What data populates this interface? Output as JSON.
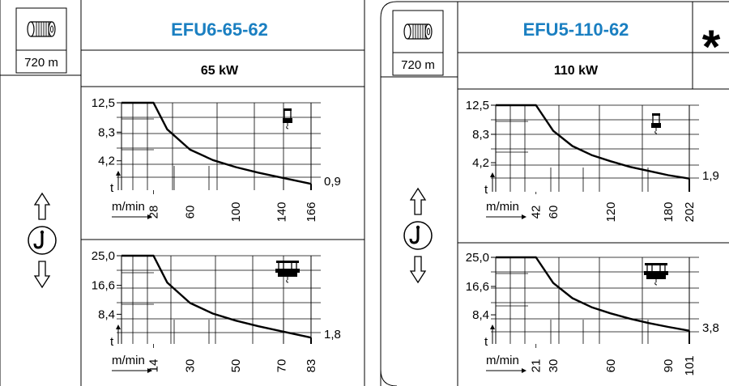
{
  "colors": {
    "title": "#1a7fc1",
    "ink": "#000000",
    "grid": "#000000"
  },
  "panels": [
    {
      "title": "EFU6-65-62",
      "power": "65 kW",
      "drum_label": "720 m",
      "star": "",
      "charts": [
        {
          "type": "line",
          "y_ticks": [
            "12,5",
            "8,3",
            "4,2"
          ],
          "y_tick_values": [
            12.5,
            8.3,
            4.2
          ],
          "y_unit": "t",
          "x_unit": "m/min",
          "x_ticks": [
            "28",
            "60",
            "100",
            "140",
            "166"
          ],
          "x_tick_values": [
            28,
            60,
            100,
            140,
            166
          ],
          "end_label": "0,9",
          "x": [
            0,
            28,
            40,
            60,
            80,
            100,
            120,
            140,
            166
          ],
          "y": [
            12.5,
            12.5,
            8.7,
            5.8,
            4.3,
            3.3,
            2.5,
            1.8,
            0.9
          ],
          "icon": "single-hook-icon"
        },
        {
          "type": "line",
          "y_ticks": [
            "25,0",
            "16,6",
            "8,4"
          ],
          "y_tick_values": [
            25.0,
            16.6,
            8.4
          ],
          "y_unit": "t",
          "x_unit": "m/min",
          "x_ticks": [
            "14",
            "30",
            "50",
            "70",
            "83"
          ],
          "x_tick_values": [
            14,
            30,
            50,
            70,
            83
          ],
          "end_label": "1,8",
          "x": [
            0,
            14,
            20,
            30,
            40,
            50,
            60,
            70,
            83
          ],
          "y": [
            25.0,
            25.0,
            17.4,
            11.6,
            8.6,
            6.6,
            5.0,
            3.6,
            1.8
          ],
          "icon": "double-hook-icon"
        }
      ]
    },
    {
      "title": "EFU5-110-62",
      "power": "110 kW",
      "drum_label": "720 m",
      "star": "*",
      "charts": [
        {
          "type": "line",
          "y_ticks": [
            "12,5",
            "8,3",
            "4,2"
          ],
          "y_tick_values": [
            12.5,
            8.3,
            4.2
          ],
          "y_unit": "t",
          "x_unit": "m/min",
          "x_ticks": [
            "42",
            "60",
            "120",
            "180",
            "202"
          ],
          "x_tick_values": [
            42,
            60,
            120,
            180,
            202
          ],
          "end_label": "1,9",
          "x": [
            0,
            42,
            60,
            80,
            100,
            120,
            140,
            160,
            180,
            202
          ],
          "y": [
            12.5,
            12.5,
            8.8,
            6.6,
            5.3,
            4.4,
            3.6,
            3.0,
            2.4,
            1.9
          ],
          "icon": "single-hook-icon"
        },
        {
          "type": "line",
          "y_ticks": [
            "25,0",
            "16,6",
            "8,4"
          ],
          "y_tick_values": [
            25.0,
            16.6,
            8.4
          ],
          "y_unit": "t",
          "x_unit": "m/min",
          "x_ticks": [
            "21",
            "30",
            "60",
            "90",
            "101"
          ],
          "x_tick_values": [
            21,
            30,
            60,
            90,
            101
          ],
          "end_label": "3,8",
          "x": [
            0,
            21,
            30,
            40,
            50,
            60,
            70,
            80,
            90,
            101
          ],
          "y": [
            25.0,
            25.0,
            17.6,
            13.2,
            10.6,
            8.8,
            7.3,
            6.0,
            4.9,
            3.8
          ],
          "icon": "double-hook-icon"
        }
      ]
    }
  ],
  "chart_data": [
    {
      "type": "line",
      "title": "EFU6-65-62",
      "xlabel": "m/min",
      "ylabel": "t",
      "xlim": [
        0,
        166
      ],
      "ylim": [
        0,
        12.5
      ],
      "x": [
        0,
        28,
        40,
        60,
        80,
        100,
        120,
        140,
        166
      ],
      "y": [
        12.5,
        12.5,
        8.7,
        5.8,
        4.3,
        3.3,
        2.5,
        1.8,
        0.9
      ],
      "x_ticks": [
        28,
        60,
        100,
        140,
        166
      ],
      "y_ticks": [
        4.2,
        8.3,
        12.5
      ],
      "grid": true
    },
    {
      "type": "line",
      "title": "EFU6-65-62",
      "xlabel": "m/min",
      "ylabel": "t",
      "xlim": [
        0,
        83
      ],
      "ylim": [
        0,
        25.0
      ],
      "x": [
        0,
        14,
        20,
        30,
        40,
        50,
        60,
        70,
        83
      ],
      "y": [
        25.0,
        25.0,
        17.4,
        11.6,
        8.6,
        6.6,
        5.0,
        3.6,
        1.8
      ],
      "x_ticks": [
        14,
        30,
        50,
        70,
        83
      ],
      "y_ticks": [
        8.4,
        16.6,
        25.0
      ],
      "grid": true
    },
    {
      "type": "line",
      "title": "EFU5-110-62",
      "xlabel": "m/min",
      "ylabel": "t",
      "xlim": [
        0,
        202
      ],
      "ylim": [
        0,
        12.5
      ],
      "x": [
        0,
        42,
        60,
        80,
        100,
        120,
        140,
        160,
        180,
        202
      ],
      "y": [
        12.5,
        12.5,
        8.8,
        6.6,
        5.3,
        4.4,
        3.6,
        3.0,
        2.4,
        1.9
      ],
      "x_ticks": [
        42,
        60,
        120,
        180,
        202
      ],
      "y_ticks": [
        4.2,
        8.3,
        12.5
      ],
      "grid": true
    },
    {
      "type": "line",
      "title": "EFU5-110-62",
      "xlabel": "m/min",
      "ylabel": "t",
      "xlim": [
        0,
        101
      ],
      "ylim": [
        0,
        25.0
      ],
      "x": [
        0,
        21,
        30,
        40,
        50,
        60,
        70,
        80,
        90,
        101
      ],
      "y": [
        25.0,
        25.0,
        17.6,
        13.2,
        10.6,
        8.8,
        7.3,
        6.0,
        4.9,
        3.8
      ],
      "x_ticks": [
        21,
        30,
        60,
        90,
        101
      ],
      "y_ticks": [
        8.4,
        16.6,
        25.0
      ],
      "grid": true
    }
  ]
}
